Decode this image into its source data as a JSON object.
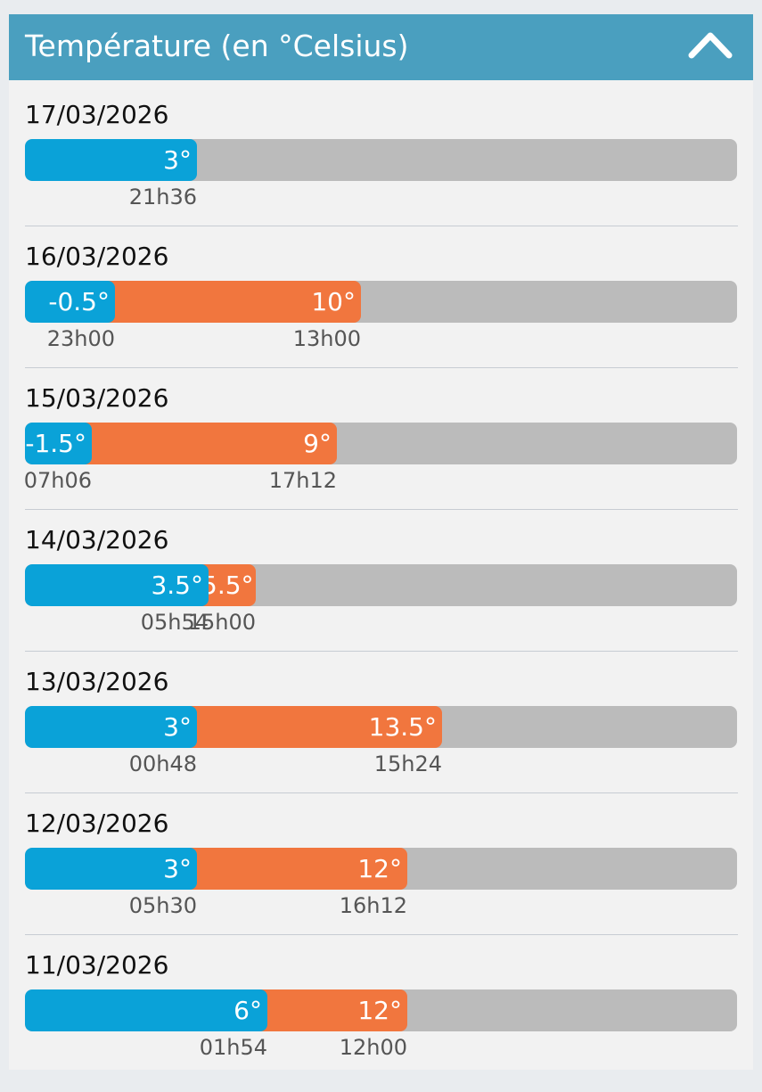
{
  "header": {
    "title": "Température (en °Celsius)",
    "collapse_icon": "chevron-up-icon"
  },
  "colors": {
    "header_bg": "#4a9fbf",
    "min_bar": "#0aa2d8",
    "max_bar": "#f1763e",
    "track": "#bbbbbb"
  },
  "days": [
    {
      "date": "17/03/2026",
      "min": {
        "value": 3,
        "label": "3°",
        "time": "21h36"
      },
      "max": null
    },
    {
      "date": "16/03/2026",
      "min": {
        "value": -0.5,
        "label": "-0.5°",
        "time": "23h00"
      },
      "max": {
        "value": 10,
        "label": "10°",
        "time": "13h00"
      }
    },
    {
      "date": "15/03/2026",
      "min": {
        "value": -1.5,
        "label": "-1.5°",
        "time": "07h06"
      },
      "max": {
        "value": 9,
        "label": "9°",
        "time": "17h12"
      }
    },
    {
      "date": "14/03/2026",
      "min": {
        "value": 3.5,
        "label": "3.5°",
        "time": "05h54"
      },
      "max": {
        "value": 5.5,
        "label": "5.5°",
        "time": "15h00"
      }
    },
    {
      "date": "13/03/2026",
      "min": {
        "value": 3,
        "label": "3°",
        "time": "00h48"
      },
      "max": {
        "value": 13.5,
        "label": "13.5°",
        "time": "15h24"
      }
    },
    {
      "date": "12/03/2026",
      "min": {
        "value": 3,
        "label": "3°",
        "time": "05h30"
      },
      "max": {
        "value": 12,
        "label": "12°",
        "time": "16h12"
      }
    },
    {
      "date": "11/03/2026",
      "min": {
        "value": 6,
        "label": "6°",
        "time": "01h54"
      },
      "max": {
        "value": 12,
        "label": "12°",
        "time": "12h00"
      }
    }
  ]
}
